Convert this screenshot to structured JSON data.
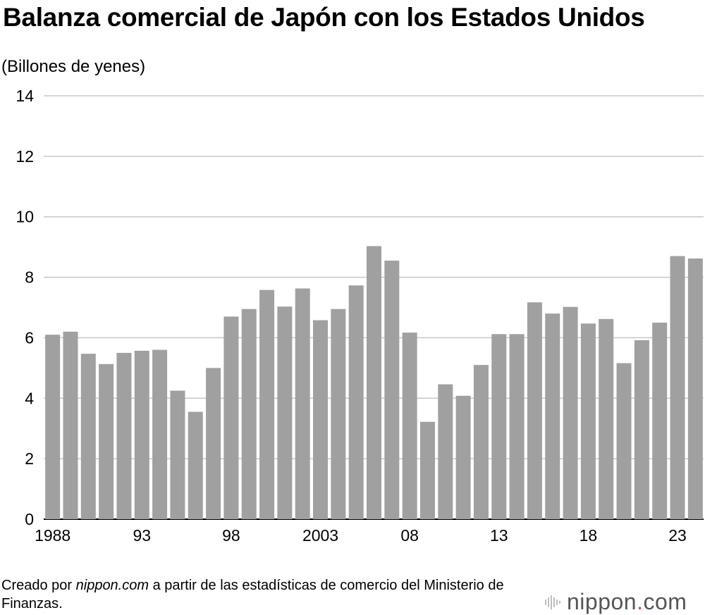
{
  "chart_data": {
    "type": "bar",
    "title": "Balanza comercial de Japón con los Estados Unidos",
    "ylabel": "(Billones de yenes)",
    "xlabel": "",
    "ylim": [
      0,
      14
    ],
    "yticks": [
      "0",
      "2",
      "4",
      "6",
      "8",
      "10",
      "12",
      "14"
    ],
    "grid": true,
    "bar_color": "#a0a0a0",
    "categories": [
      "1988",
      "1989",
      "1990",
      "1991",
      "1992",
      "1993",
      "1994",
      "1995",
      "1996",
      "1997",
      "1998",
      "1999",
      "2000",
      "2001",
      "2002",
      "2003",
      "2004",
      "2005",
      "2006",
      "2007",
      "2008",
      "2009",
      "2010",
      "2011",
      "2012",
      "2013",
      "2014",
      "2015",
      "2016",
      "2017",
      "2018",
      "2019",
      "2020",
      "2021",
      "2022",
      "2023",
      "2024"
    ],
    "x_tick_labels": [
      "1988",
      "",
      "",
      "",
      "",
      "93",
      "",
      "",
      "",
      "",
      "98",
      "",
      "",
      "",
      "",
      "2003",
      "",
      "",
      "",
      "",
      "08",
      "",
      "",
      "",
      "",
      "13",
      "",
      "",
      "",
      "",
      "18",
      "",
      "",
      "",
      "",
      "23",
      ""
    ],
    "values": [
      6.1,
      6.2,
      5.47,
      5.13,
      5.5,
      5.57,
      5.6,
      4.25,
      3.55,
      5.0,
      6.7,
      6.95,
      7.58,
      7.03,
      7.63,
      6.58,
      6.95,
      7.73,
      9.03,
      8.55,
      6.17,
      3.22,
      4.46,
      4.08,
      5.1,
      6.12,
      6.12,
      7.17,
      6.8,
      7.02,
      6.47,
      6.62,
      5.16,
      5.92,
      6.5,
      8.7,
      8.62
    ]
  },
  "source": {
    "prefix": "Creado por ",
    "site": "nippon.com",
    "suffix": " a partir de las estadísticas de comercio del Ministerio de Finanzas."
  },
  "logo": {
    "name": "nippon",
    "dot": ".",
    "tld": "com",
    "accent": "#e8383d"
  }
}
